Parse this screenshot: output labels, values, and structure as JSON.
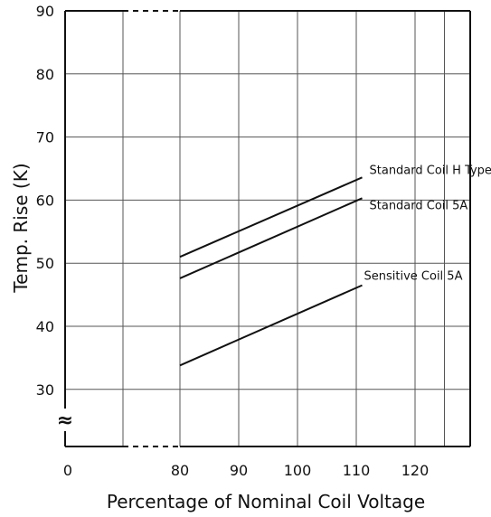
{
  "chart_data": {
    "type": "line",
    "xlabel": "Percentage of Nominal Coil Voltage",
    "ylabel": "Temp. Rise (K)",
    "x_ticks": [
      "0",
      "80",
      "90",
      "100",
      "110",
      "120"
    ],
    "y_ticks": [
      "30",
      "40",
      "50",
      "60",
      "70",
      "80",
      "90"
    ],
    "xlim": [
      80,
      130
    ],
    "ylim": [
      20,
      90
    ],
    "x_axis_break": true,
    "y_axis_break": true,
    "grid": true,
    "series": [
      {
        "name": "Standard Coil H Type",
        "x": [
          80,
          111
        ],
        "y": [
          51,
          63.6
        ]
      },
      {
        "name": "Standard Coil 5A",
        "x": [
          80,
          111
        ],
        "y": [
          47.6,
          60.3
        ]
      },
      {
        "name": "Sensitive Coil 5A",
        "x": [
          80,
          111
        ],
        "y": [
          33.8,
          46.5
        ]
      }
    ],
    "axis_break_symbol": "≈",
    "line_color": "#111111",
    "grid_color": "#555555"
  }
}
